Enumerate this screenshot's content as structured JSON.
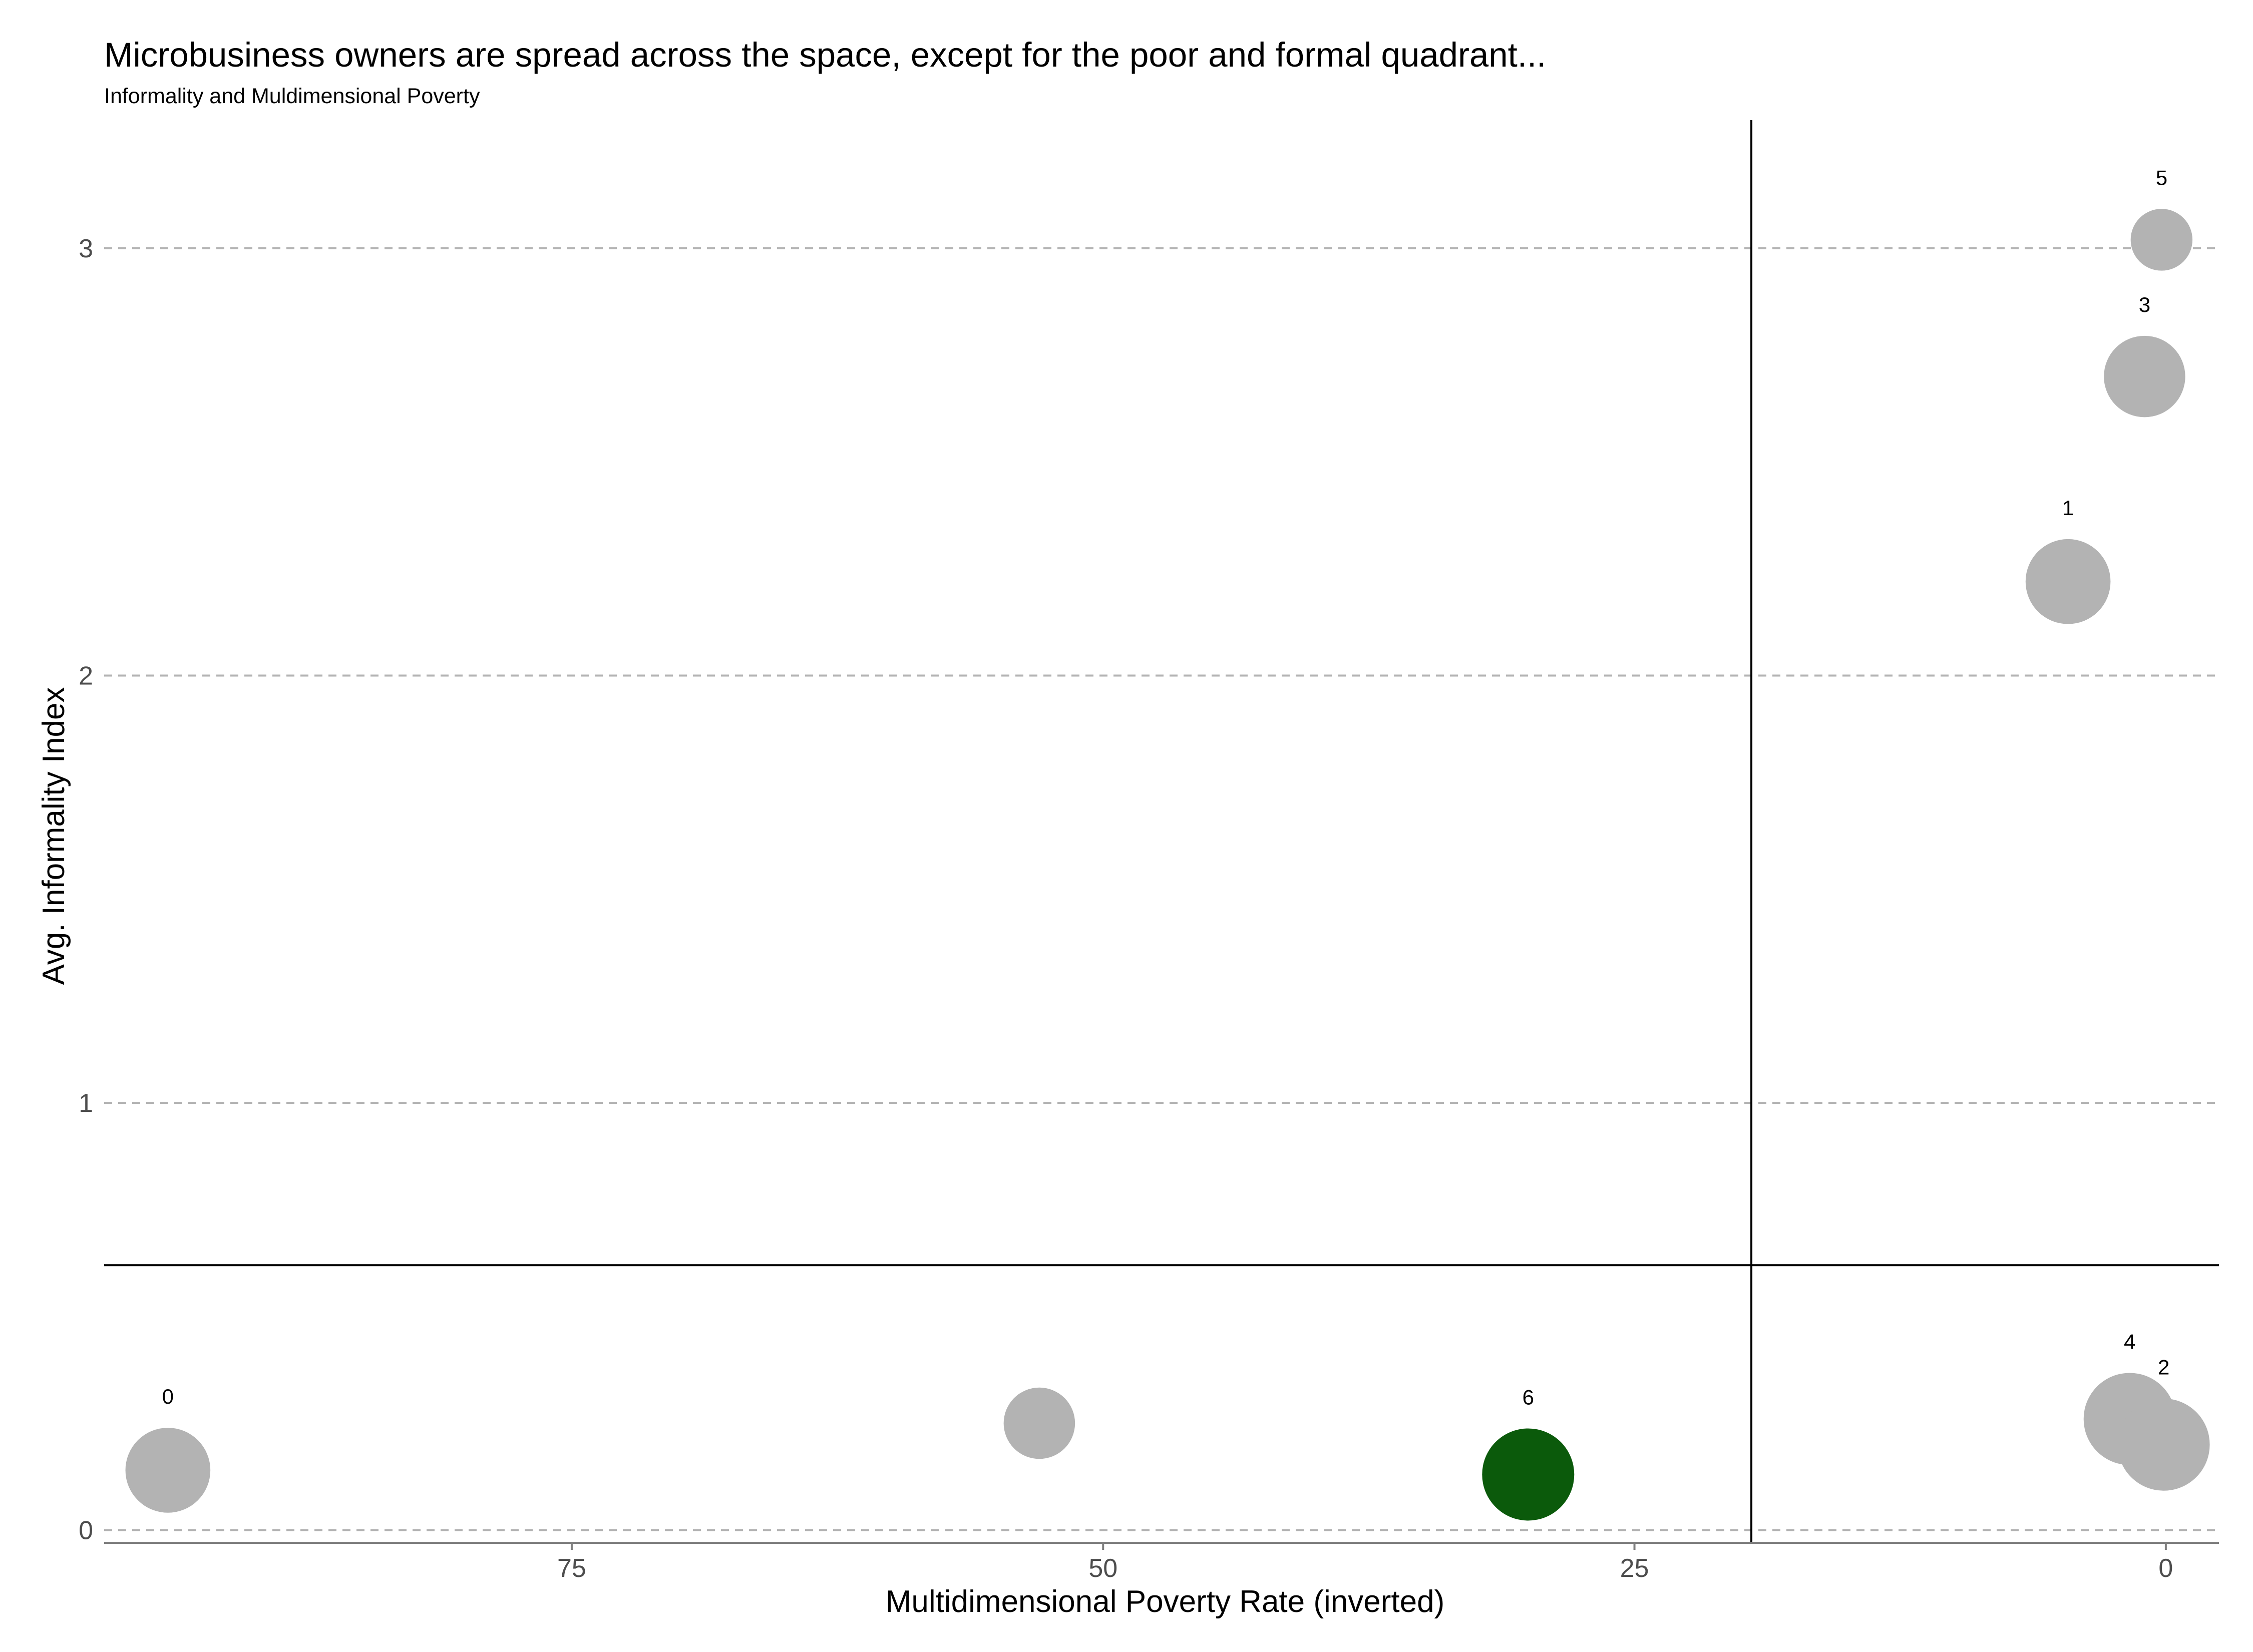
{
  "title": "Microbusiness owners are spread across the space, except for the poor and formal quadrant...",
  "subtitle": "Informality and Muldimensional Poverty",
  "colors": {
    "default_point": "#b3b3b3",
    "highlight_point": "#0b5a0b",
    "gridline": "#b3b3b3",
    "reference_line": "#000000",
    "axis_line": "#7f7f7f"
  },
  "chart_data": {
    "type": "scatter",
    "title": "Microbusiness owners are spread across the space, except for the poor and formal quadrant...",
    "subtitle": "Informality and Muldimensional Poverty",
    "xlabel": "Multidimensional Poverty Rate (inverted)",
    "ylabel": "Avg. Informality Index",
    "x_reversed": true,
    "xlim": [
      97,
      -2.5
    ],
    "ylim": [
      -0.03,
      3.3
    ],
    "x_ticks": [
      75,
      50,
      25,
      0
    ],
    "y_ticks": [
      0,
      1,
      2,
      3
    ],
    "x_tick_labels": [
      "75",
      "50",
      "25",
      "0"
    ],
    "y_tick_labels": [
      "0",
      "1",
      "2",
      "3"
    ],
    "grid": "horizontal dashed",
    "reference_lines": {
      "x": 19.5,
      "y": 0.62
    },
    "points": [
      {
        "label": "0",
        "x": 94,
        "y": 0.14,
        "size": 0.85,
        "highlight": false
      },
      {
        "label": "",
        "x": 53,
        "y": 0.25,
        "size": 0.6,
        "highlight": false
      },
      {
        "label": "6",
        "x": 30,
        "y": 0.13,
        "size": 1.0,
        "highlight": true
      },
      {
        "label": "1",
        "x": 4.6,
        "y": 2.22,
        "size": 0.85,
        "highlight": false
      },
      {
        "label": "3",
        "x": 1.0,
        "y": 2.7,
        "size": 0.78,
        "highlight": false
      },
      {
        "label": "5",
        "x": 0.2,
        "y": 3.02,
        "size": 0.45,
        "highlight": false
      },
      {
        "label": "4",
        "x": 1.7,
        "y": 0.26,
        "size": 1.0,
        "highlight": false
      },
      {
        "label": "2",
        "x": 0.1,
        "y": 0.2,
        "size": 1.0,
        "highlight": false
      }
    ]
  }
}
